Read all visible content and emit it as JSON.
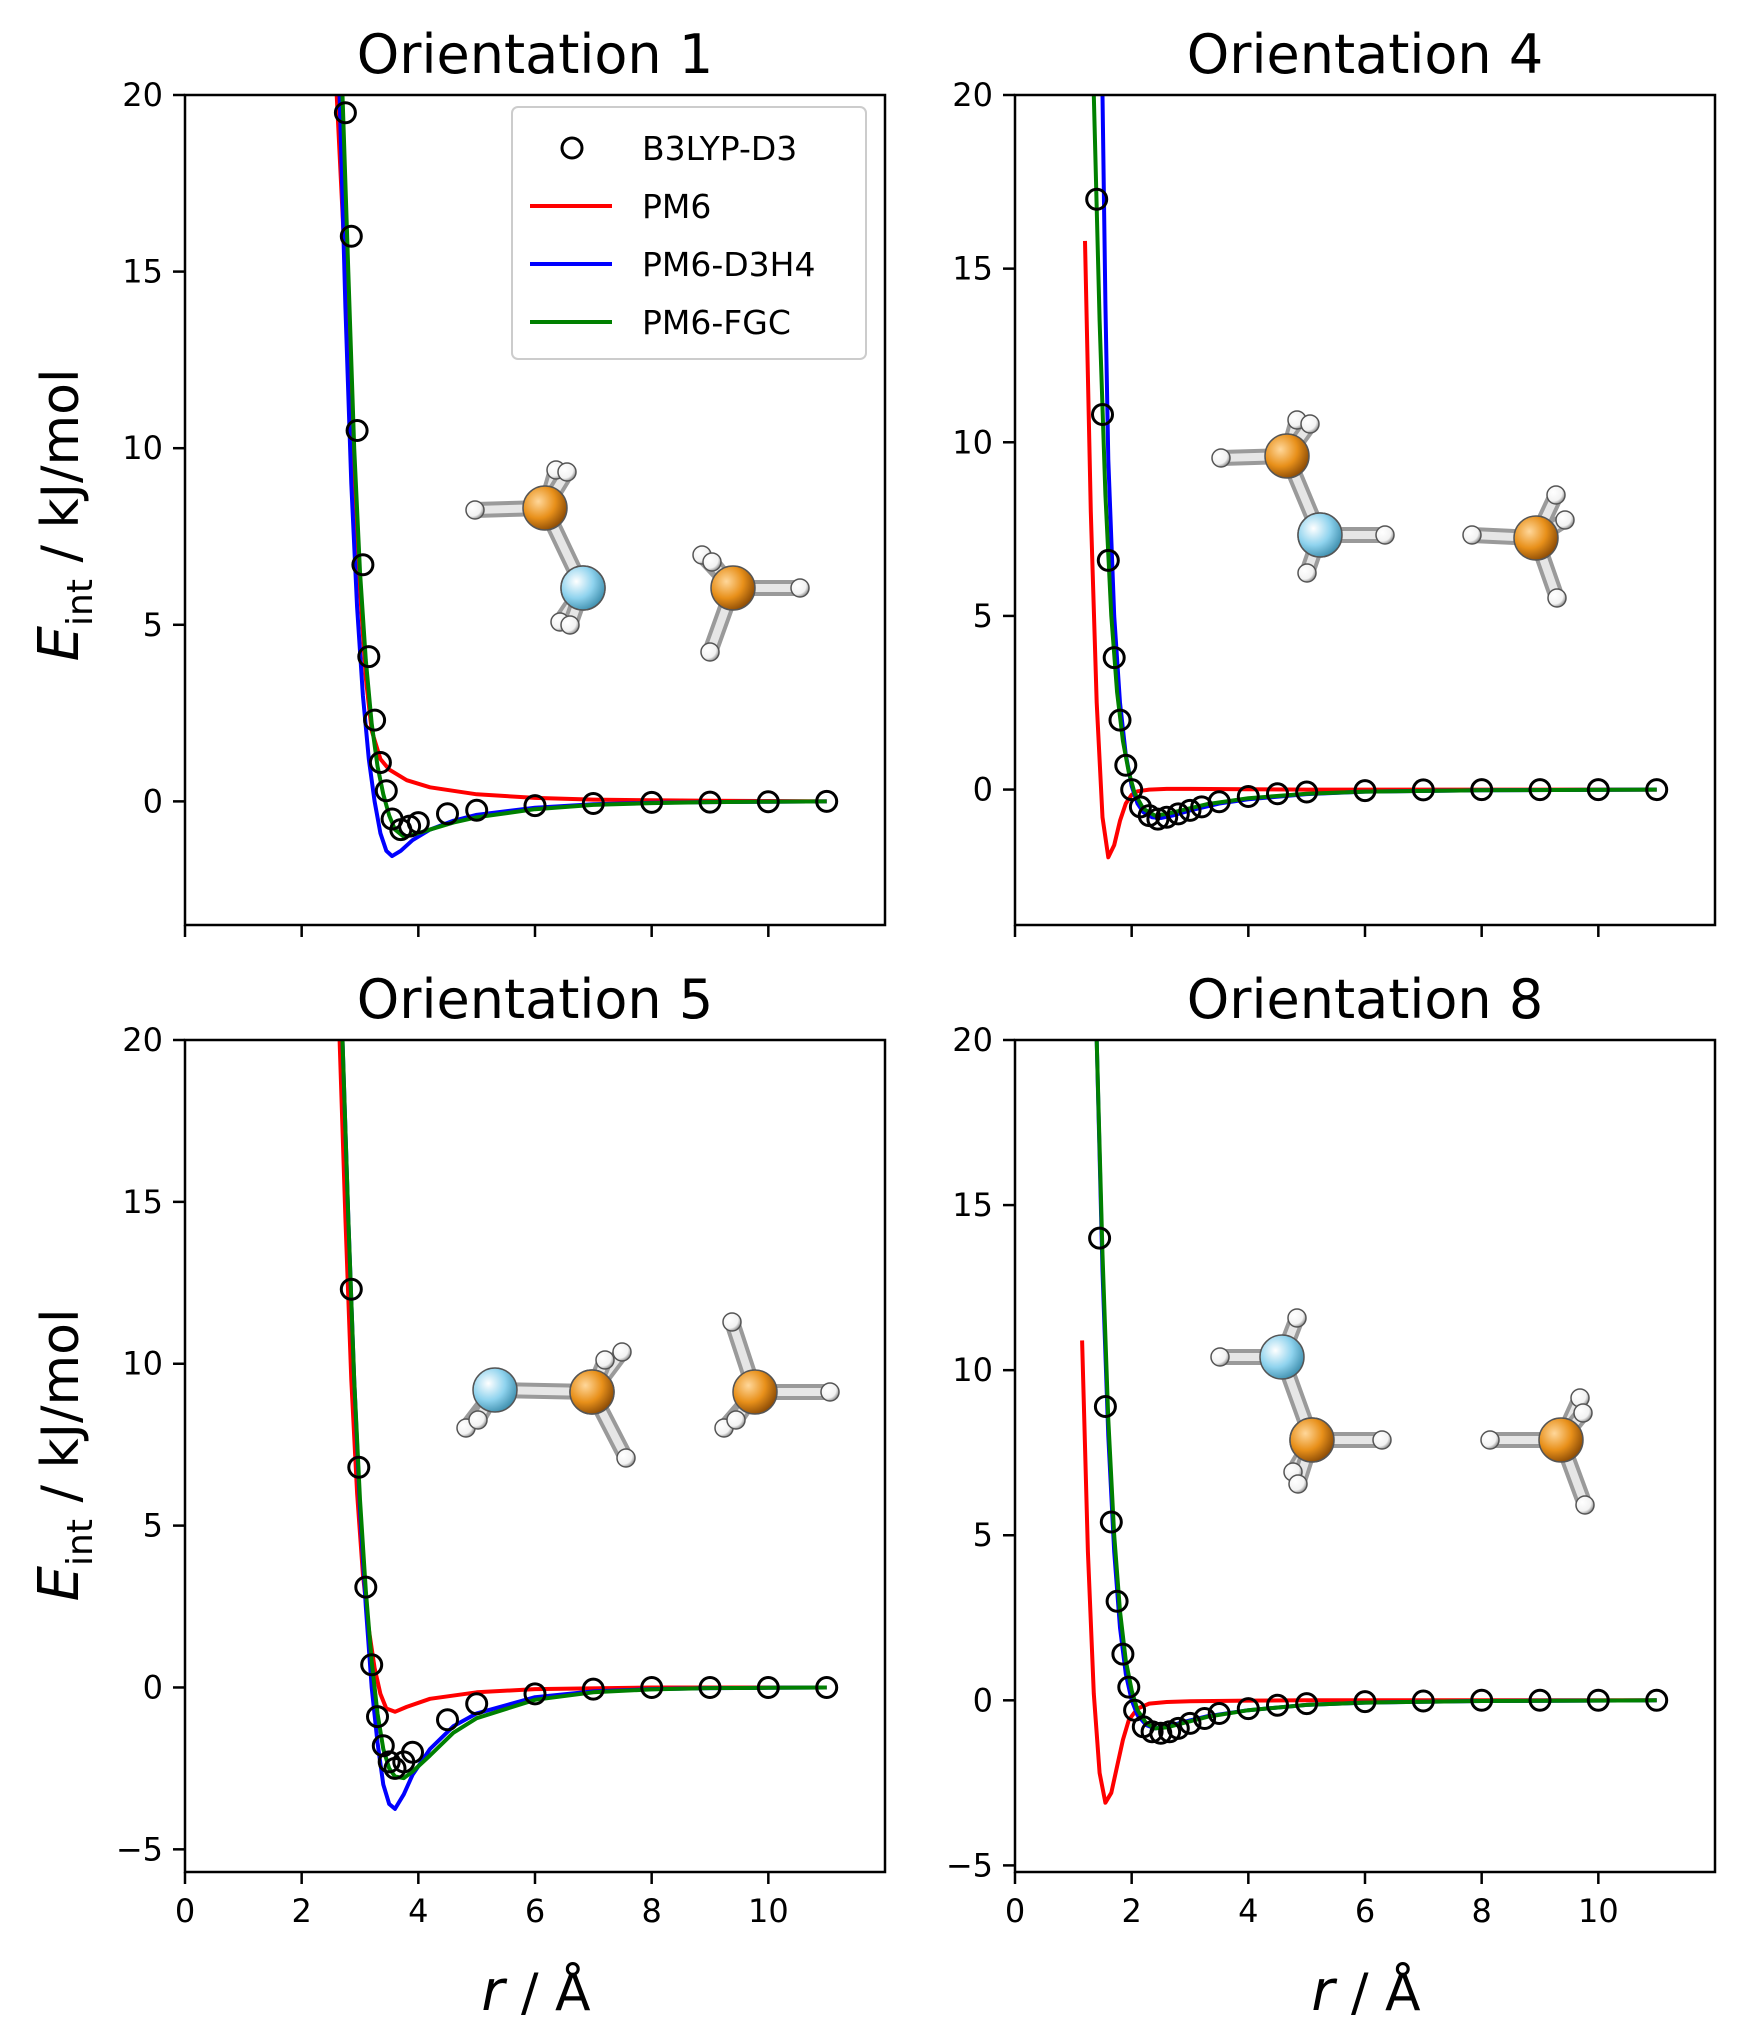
{
  "figure": {
    "xlabel_var": "r",
    "xlabel_unit": " / Å",
    "ylabel_var": "E",
    "ylabel_sub": "int",
    "ylabel_unit": " / kJ/mol"
  },
  "legend": {
    "items": [
      {
        "label": "B3LYP-D3",
        "color": "#000000",
        "kind": "marker"
      },
      {
        "label": "PM6",
        "color": "#ff0000",
        "kind": "line"
      },
      {
        "label": "PM6-D3H4",
        "color": "#0000ff",
        "kind": "line"
      },
      {
        "label": "PM6-FGC",
        "color": "#008000",
        "kind": "line"
      }
    ]
  },
  "atom_colors": {
    "carbon": "#e8901a",
    "nitrogen": "#8fd3ee",
    "hydrogen": "#ffffff"
  },
  "chart_data": [
    {
      "type": "line",
      "title": "Orientation 1",
      "xlim": [
        0,
        12
      ],
      "ylim": [
        -3.5,
        20
      ],
      "xticks": [
        0,
        2,
        4,
        6,
        8,
        10
      ],
      "yticks": [
        0,
        5,
        10,
        15,
        20
      ],
      "show_xticklabels": false,
      "scatter": {
        "name": "B3LYP-D3",
        "x": [
          2.75,
          2.85,
          2.95,
          3.05,
          3.15,
          3.25,
          3.35,
          3.45,
          3.55,
          3.7,
          3.85,
          4.0,
          4.5,
          5.0,
          6.0,
          7.0,
          8.0,
          9.0,
          10.0,
          11.0
        ],
        "y": [
          19.5,
          16.0,
          10.5,
          6.7,
          4.1,
          2.3,
          1.1,
          0.3,
          -0.5,
          -0.8,
          -0.7,
          -0.6,
          -0.35,
          -0.25,
          -0.12,
          -0.06,
          -0.03,
          -0.02,
          -0.01,
          0.0
        ]
      },
      "series": [
        {
          "name": "PM6",
          "x": [
            2.6,
            2.75,
            2.9,
            3.0,
            3.1,
            3.2,
            3.35,
            3.5,
            3.8,
            4.2,
            5.0,
            6.0,
            7.0,
            8.0,
            9.0,
            10.0,
            11.0
          ],
          "y": [
            20.0,
            15.0,
            9.5,
            6.0,
            3.5,
            2.0,
            1.2,
            0.9,
            0.6,
            0.4,
            0.2,
            0.1,
            0.05,
            0.03,
            0.02,
            0.01,
            0.0
          ]
        },
        {
          "name": "PM6-D3H4",
          "x": [
            2.65,
            2.75,
            2.85,
            2.95,
            3.05,
            3.15,
            3.25,
            3.35,
            3.45,
            3.55,
            3.7,
            3.9,
            4.2,
            4.6,
            5.0,
            6.0,
            7.0,
            8.0,
            9.0,
            10.0,
            11.0
          ],
          "y": [
            20.0,
            14.0,
            9.0,
            5.5,
            3.0,
            1.2,
            0.0,
            -0.9,
            -1.4,
            -1.55,
            -1.4,
            -1.1,
            -0.8,
            -0.55,
            -0.38,
            -0.18,
            -0.08,
            -0.04,
            -0.02,
            -0.01,
            0.0
          ]
        },
        {
          "name": "PM6-FGC",
          "x": [
            2.7,
            2.8,
            2.9,
            3.0,
            3.1,
            3.2,
            3.3,
            3.4,
            3.5,
            3.6,
            3.75,
            3.9,
            4.2,
            4.6,
            5.0,
            6.0,
            7.0,
            8.0,
            9.0,
            10.0,
            11.0
          ],
          "y": [
            20.0,
            15.0,
            10.0,
            6.5,
            4.0,
            2.2,
            1.0,
            0.2,
            -0.4,
            -0.8,
            -1.0,
            -0.95,
            -0.8,
            -0.6,
            -0.45,
            -0.22,
            -0.1,
            -0.05,
            -0.02,
            -0.01,
            0.0
          ]
        }
      ]
    },
    {
      "type": "line",
      "title": "Orientation 4",
      "xlim": [
        0,
        12
      ],
      "ylim": [
        -3.9,
        20
      ],
      "xticks": [
        0,
        2,
        4,
        6,
        8,
        10
      ],
      "yticks": [
        0,
        5,
        10,
        15,
        20
      ],
      "show_xticklabels": false,
      "scatter": {
        "name": "B3LYP-D3",
        "x": [
          1.4,
          1.5,
          1.6,
          1.7,
          1.8,
          1.9,
          2.0,
          2.15,
          2.3,
          2.45,
          2.6,
          2.8,
          3.0,
          3.2,
          3.5,
          4.0,
          4.5,
          5.0,
          6.0,
          7.0,
          8.0,
          9.0,
          10.0,
          11.0
        ],
        "y": [
          17.0,
          10.8,
          6.6,
          3.8,
          2.0,
          0.7,
          0.0,
          -0.5,
          -0.75,
          -0.85,
          -0.8,
          -0.7,
          -0.6,
          -0.5,
          -0.35,
          -0.2,
          -0.12,
          -0.07,
          -0.03,
          -0.01,
          0.0,
          0.0,
          0.0,
          0.0
        ]
      },
      "series": [
        {
          "name": "PM6",
          "x": [
            1.2,
            1.3,
            1.4,
            1.5,
            1.6,
            1.7,
            1.8,
            1.9,
            2.0,
            2.1,
            2.3,
            2.6,
            3.0,
            4.0,
            5.0,
            6.0,
            8.0,
            11.0
          ],
          "y": [
            15.8,
            8.0,
            2.5,
            -0.8,
            -1.95,
            -1.6,
            -0.9,
            -0.4,
            -0.15,
            -0.05,
            0.0,
            0.02,
            0.02,
            0.01,
            0.0,
            0.0,
            0.0,
            0.0
          ]
        },
        {
          "name": "PM6-D3H4",
          "x": [
            1.5,
            1.55,
            1.6,
            1.7,
            1.8,
            1.9,
            2.0,
            2.1,
            2.2,
            2.35,
            2.5,
            2.7,
            3.0,
            3.5,
            4.0,
            5.0,
            6.0,
            8.0,
            11.0
          ],
          "y": [
            20.0,
            14.0,
            9.5,
            5.0,
            2.5,
            1.0,
            0.1,
            -0.4,
            -0.65,
            -0.8,
            -0.82,
            -0.75,
            -0.6,
            -0.4,
            -0.28,
            -0.13,
            -0.06,
            -0.02,
            0.0
          ]
        },
        {
          "name": "PM6-FGC",
          "x": [
            1.35,
            1.45,
            1.55,
            1.65,
            1.75,
            1.85,
            1.95,
            2.05,
            2.2,
            2.4,
            2.6,
            2.9,
            3.3,
            4.0,
            5.0,
            6.0,
            8.0,
            11.0
          ],
          "y": [
            20.0,
            13.5,
            8.5,
            5.0,
            2.8,
            1.4,
            0.5,
            -0.1,
            -0.55,
            -0.75,
            -0.7,
            -0.58,
            -0.42,
            -0.25,
            -0.12,
            -0.06,
            -0.02,
            0.0
          ]
        }
      ]
    },
    {
      "type": "line",
      "title": "Orientation 5",
      "xlim": [
        0,
        12
      ],
      "ylim": [
        -5.7,
        20
      ],
      "xticks": [
        0,
        2,
        4,
        6,
        8,
        10
      ],
      "yticks": [
        -5,
        0,
        5,
        10,
        15,
        20
      ],
      "show_xticklabels": true,
      "scatter": {
        "name": "B3LYP-D3",
        "x": [
          2.85,
          2.98,
          3.1,
          3.2,
          3.3,
          3.4,
          3.5,
          3.6,
          3.75,
          3.9,
          4.5,
          5.0,
          6.0,
          7.0,
          8.0,
          9.0,
          10.0,
          11.0
        ],
        "y": [
          12.3,
          6.8,
          3.1,
          0.7,
          -0.9,
          -1.8,
          -2.3,
          -2.5,
          -2.3,
          -2.0,
          -1.0,
          -0.5,
          -0.2,
          -0.05,
          0.0,
          0.0,
          0.0,
          0.0
        ]
      },
      "series": [
        {
          "name": "PM6",
          "x": [
            2.65,
            2.75,
            2.85,
            2.95,
            3.05,
            3.15,
            3.25,
            3.35,
            3.45,
            3.6,
            3.8,
            4.2,
            5.0,
            6.0,
            8.0,
            11.0
          ],
          "y": [
            20.0,
            14.5,
            9.5,
            6.0,
            3.5,
            1.8,
            0.6,
            -0.2,
            -0.65,
            -0.75,
            -0.6,
            -0.35,
            -0.15,
            -0.05,
            0.0,
            0.0
          ]
        },
        {
          "name": "PM6-D3H4",
          "x": [
            2.7,
            2.8,
            2.9,
            3.0,
            3.1,
            3.2,
            3.3,
            3.4,
            3.5,
            3.6,
            3.75,
            3.9,
            4.2,
            4.6,
            5.0,
            6.0,
            7.0,
            8.0,
            9.0,
            10.0,
            11.0
          ],
          "y": [
            20.0,
            14.5,
            9.5,
            5.5,
            2.5,
            0.0,
            -1.7,
            -3.0,
            -3.6,
            -3.75,
            -3.3,
            -2.7,
            -1.9,
            -1.2,
            -0.8,
            -0.3,
            -0.12,
            -0.05,
            -0.02,
            -0.01,
            0.0
          ]
        },
        {
          "name": "PM6-FGC",
          "x": [
            2.7,
            2.8,
            2.9,
            3.0,
            3.1,
            3.2,
            3.3,
            3.4,
            3.5,
            3.6,
            3.75,
            3.9,
            4.2,
            4.6,
            5.0,
            6.0,
            7.0,
            8.0,
            9.0,
            10.0,
            11.0
          ],
          "y": [
            20.0,
            14.5,
            9.5,
            5.8,
            3.0,
            0.8,
            -0.8,
            -1.9,
            -2.5,
            -2.75,
            -2.8,
            -2.6,
            -2.1,
            -1.4,
            -0.95,
            -0.38,
            -0.15,
            -0.06,
            -0.02,
            -0.01,
            0.0
          ]
        }
      ]
    },
    {
      "type": "line",
      "title": "Orientation 8",
      "xlim": [
        0,
        12
      ],
      "ylim": [
        -5.2,
        20
      ],
      "xticks": [
        0,
        2,
        4,
        6,
        8,
        10
      ],
      "yticks": [
        -5,
        0,
        5,
        10,
        15,
        20
      ],
      "show_xticklabels": true,
      "scatter": {
        "name": "B3LYP-D3",
        "x": [
          1.45,
          1.55,
          1.65,
          1.75,
          1.85,
          1.95,
          2.05,
          2.2,
          2.35,
          2.5,
          2.65,
          2.8,
          3.0,
          3.25,
          3.5,
          4.0,
          4.5,
          5.0,
          6.0,
          7.0,
          8.0,
          9.0,
          10.0,
          11.0
        ],
        "y": [
          14.0,
          8.9,
          5.4,
          3.0,
          1.4,
          0.4,
          -0.3,
          -0.8,
          -0.95,
          -1.0,
          -0.95,
          -0.85,
          -0.7,
          -0.55,
          -0.4,
          -0.25,
          -0.15,
          -0.1,
          -0.04,
          -0.02,
          0.0,
          0.0,
          0.0,
          0.0
        ]
      },
      "series": [
        {
          "name": "PM6",
          "x": [
            1.15,
            1.25,
            1.35,
            1.45,
            1.55,
            1.65,
            1.75,
            1.85,
            1.95,
            2.1,
            2.3,
            2.6,
            3.0,
            4.0,
            5.0,
            6.0,
            8.0,
            11.0
          ],
          "y": [
            10.9,
            4.5,
            0.2,
            -2.2,
            -3.1,
            -2.8,
            -2.0,
            -1.2,
            -0.6,
            -0.25,
            -0.1,
            -0.05,
            -0.03,
            -0.01,
            0.0,
            0.0,
            0.0,
            0.0
          ]
        },
        {
          "name": "PM6-D3H4",
          "x": [
            1.4,
            1.5,
            1.6,
            1.7,
            1.8,
            1.9,
            2.0,
            2.1,
            2.25,
            2.4,
            2.6,
            2.9,
            3.3,
            4.0,
            5.0,
            6.0,
            8.0,
            11.0
          ],
          "y": [
            20.0,
            13.0,
            8.0,
            4.5,
            2.2,
            0.8,
            0.0,
            -0.45,
            -0.75,
            -0.85,
            -0.8,
            -0.65,
            -0.48,
            -0.3,
            -0.14,
            -0.07,
            -0.02,
            0.0
          ]
        },
        {
          "name": "PM6-FGC",
          "x": [
            1.4,
            1.5,
            1.6,
            1.7,
            1.8,
            1.9,
            2.0,
            2.1,
            2.25,
            2.4,
            2.6,
            2.9,
            3.3,
            4.0,
            5.0,
            6.0,
            8.0,
            11.0
          ],
          "y": [
            20.0,
            13.5,
            8.5,
            5.0,
            2.7,
            1.2,
            0.3,
            -0.3,
            -0.7,
            -0.85,
            -0.82,
            -0.68,
            -0.5,
            -0.3,
            -0.14,
            -0.07,
            -0.02,
            0.0
          ]
        }
      ]
    }
  ]
}
